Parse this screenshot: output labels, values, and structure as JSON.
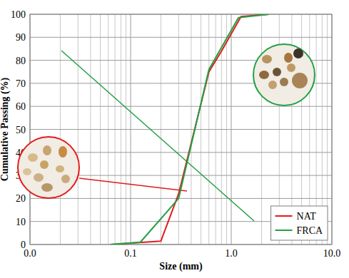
{
  "chart_data": {
    "type": "line",
    "x_label": "Size (mm)",
    "y_label": "Cumulative Passing (%)",
    "log": "x",
    "grid": true,
    "legend": "bottom-right",
    "xlim": [
      0.01,
      10
    ],
    "xticks": [
      {
        "value": 0.01,
        "label": "0.0"
      },
      {
        "value": 0.1,
        "label": "0.1"
      },
      {
        "value": 1,
        "label": "1.0"
      },
      {
        "value": 10,
        "label": "10.0"
      }
    ],
    "ylim": [
      0,
      100
    ],
    "yticks": [
      0,
      10,
      20,
      30,
      40,
      50,
      60,
      70,
      80,
      90,
      100
    ],
    "series": [
      {
        "name": "NAT",
        "color": "#e31a1c",
        "x": [
          0.063,
          0.2,
          0.3,
          0.6,
          0.8,
          1.25,
          2.36
        ],
        "values": [
          0,
          1.5,
          22,
          75,
          84,
          99,
          100
        ]
      },
      {
        "name": "FRCA",
        "color": "#22a045",
        "x": [
          0.063,
          0.125,
          0.3,
          0.6,
          1.18,
          2.36
        ],
        "values": [
          0,
          1,
          20,
          76,
          98.5,
          100
        ]
      }
    ]
  }
}
